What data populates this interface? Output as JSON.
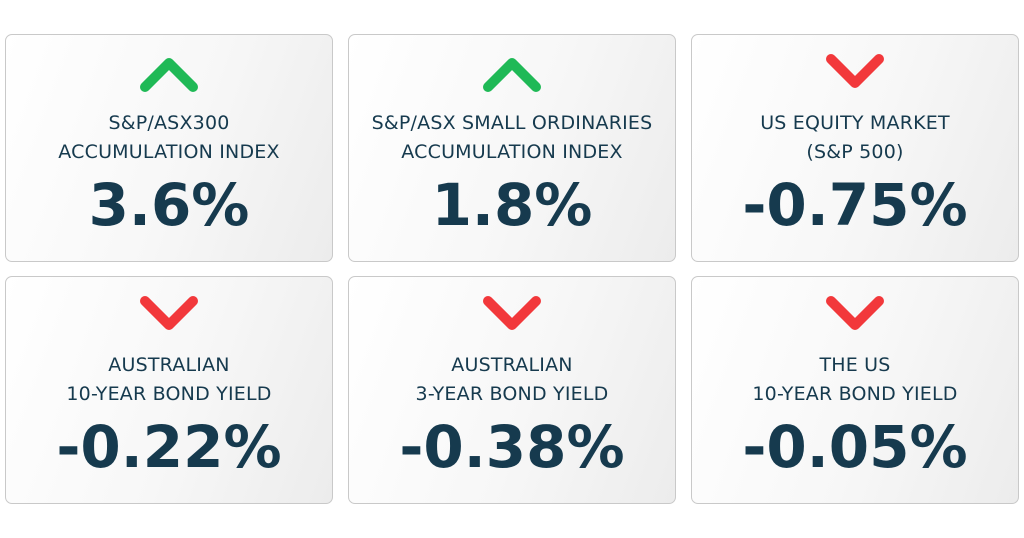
{
  "cards": [
    {
      "direction": "up",
      "icon": "chevron-up-icon",
      "label_line1": "S&P/ASX300",
      "label_line2": "ACCUMULATION INDEX",
      "value": "3.6%"
    },
    {
      "direction": "up",
      "icon": "chevron-up-icon",
      "label_line1": "S&P/ASX SMALL ORDINARIES",
      "label_line2": "ACCUMULATION INDEX",
      "value": "1.8%"
    },
    {
      "direction": "down",
      "icon": "chevron-down-icon",
      "label_line1": "US EQUITY MARKET",
      "label_line2": "(S&P 500)",
      "value": "-0.75%"
    },
    {
      "direction": "down",
      "icon": "chevron-down-icon",
      "label_line1": "AUSTRALIAN",
      "label_line2": "10-YEAR BOND YIELD",
      "value": "-0.22%"
    },
    {
      "direction": "down",
      "icon": "chevron-down-icon",
      "label_line1": "AUSTRALIAN",
      "label_line2": "3-YEAR BOND YIELD",
      "value": "-0.38%"
    },
    {
      "direction": "down",
      "icon": "chevron-down-icon",
      "label_line1": "THE US",
      "label_line2": "10-YEAR BOND YIELD",
      "value": "-0.05%"
    }
  ],
  "colors": {
    "up": "#1fb956",
    "down": "#f2383b",
    "text": "#163a4e"
  }
}
